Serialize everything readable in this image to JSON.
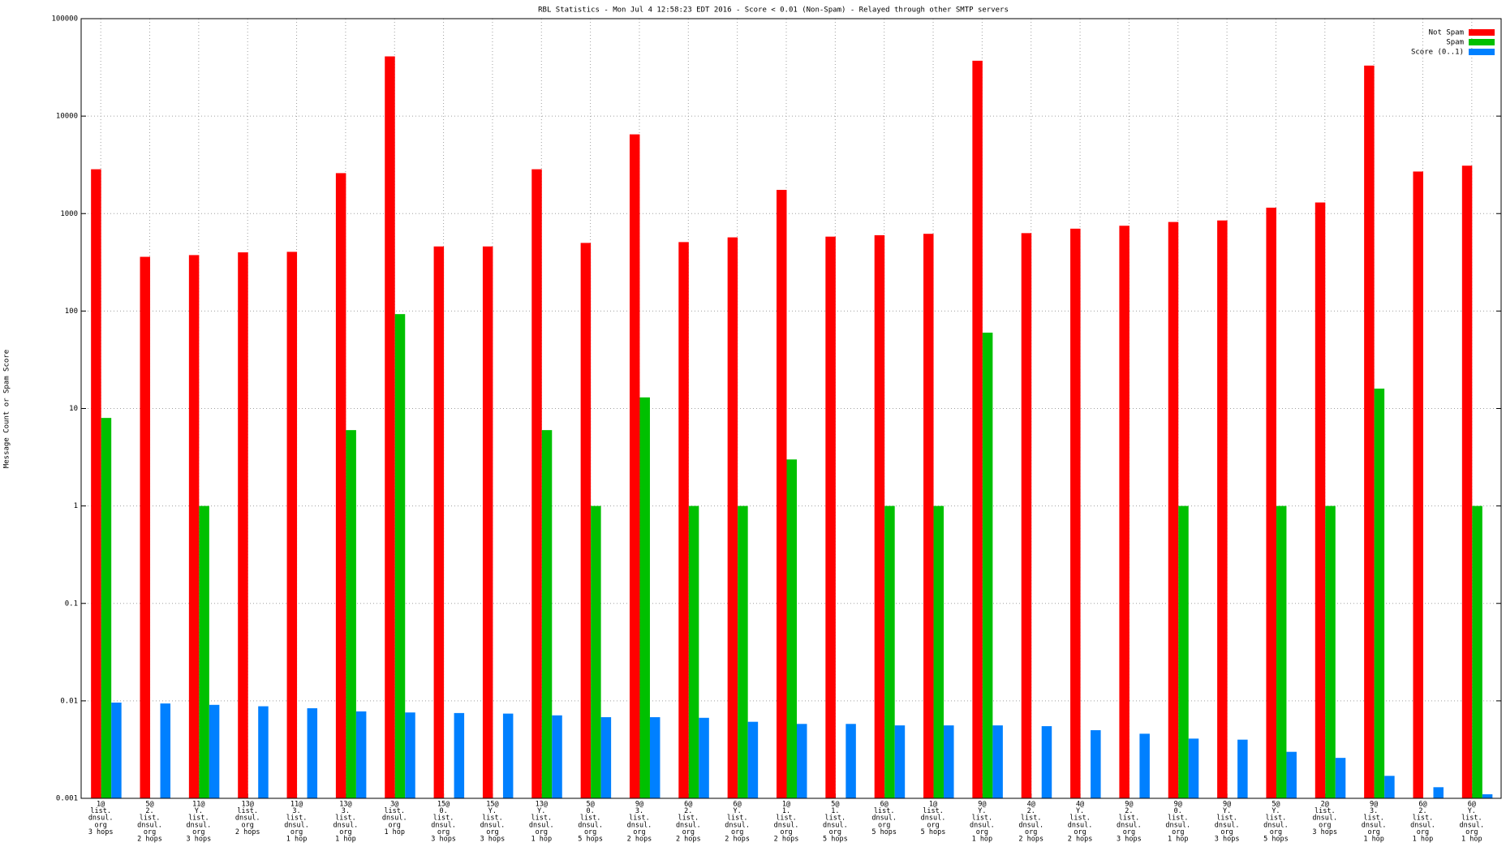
{
  "chart_data": {
    "type": "bar",
    "title": "RBL Statistics - Mon Jul  4 12:58:23 EDT 2016 - Score < 0.01 (Non-Spam) - Relayed through other SMTP servers",
    "y_label": "Message Count or Spam Score",
    "log_y": true,
    "grid": true,
    "legend": "top-right",
    "categories": [
      [
        "1@",
        "list.",
        "dnsul.",
        "org",
        "3 hops"
      ],
      [
        "5@",
        "2.",
        "list.",
        "dnsul.",
        "org",
        "2 hops"
      ],
      [
        "11@",
        "Y.",
        "list.",
        "dnsul.",
        "org",
        "3 hops"
      ],
      [
        "13@",
        "list.",
        "dnsul.",
        "org",
        "2 hops"
      ],
      [
        "11@",
        "3.",
        "list.",
        "dnsul.",
        "org",
        "1 hop"
      ],
      [
        "13@",
        "3.",
        "list.",
        "dnsul.",
        "org",
        "1 hop"
      ],
      [
        "3@",
        "list.",
        "dnsul.",
        "org",
        "1 hop"
      ],
      [
        "15@",
        "0.",
        "list.",
        "dnsul.",
        "org",
        "3 hops"
      ],
      [
        "15@",
        "Y.",
        "list.",
        "dnsul.",
        "org",
        "3 hops"
      ],
      [
        "13@",
        "Y.",
        "list.",
        "dnsul.",
        "org",
        "1 hop"
      ],
      [
        "5@",
        "0.",
        "list.",
        "dnsul.",
        "org",
        "5 hops"
      ],
      [
        "9@",
        "3.",
        "list.",
        "dnsul.",
        "org",
        "2 hops"
      ],
      [
        "6@",
        "2.",
        "list.",
        "dnsul.",
        "org",
        "2 hops"
      ],
      [
        "6@",
        "Y.",
        "list.",
        "dnsul.",
        "org",
        "2 hops"
      ],
      [
        "1@",
        "1.",
        "list.",
        "dnsul.",
        "org",
        "2 hops"
      ],
      [
        "5@",
        "1.",
        "list.",
        "dnsul.",
        "org",
        "5 hops"
      ],
      [
        "6@",
        "list.",
        "dnsul.",
        "org",
        "5 hops"
      ],
      [
        "1@",
        "list.",
        "dnsul.",
        "org",
        "5 hops"
      ],
      [
        "9@",
        "Y.",
        "list.",
        "dnsul.",
        "org",
        "1 hop"
      ],
      [
        "4@",
        "2.",
        "list.",
        "dnsul.",
        "org",
        "2 hops"
      ],
      [
        "4@",
        "Y.",
        "list.",
        "dnsul.",
        "org",
        "2 hops"
      ],
      [
        "9@",
        "2.",
        "list.",
        "dnsul.",
        "org",
        "3 hops"
      ],
      [
        "9@",
        "0.",
        "list.",
        "dnsul.",
        "org",
        "1 hop"
      ],
      [
        "9@",
        "Y.",
        "list.",
        "dnsul.",
        "org",
        "3 hops"
      ],
      [
        "5@",
        "Y.",
        "list.",
        "dnsul.",
        "org",
        "5 hops"
      ],
      [
        "2@",
        "list.",
        "dnsul.",
        "org",
        "3 hops"
      ],
      [
        "9@",
        "3.",
        "list.",
        "dnsul.",
        "org",
        "1 hop"
      ],
      [
        "6@",
        "2.",
        "list.",
        "dnsul.",
        "org",
        "1 hop"
      ],
      [
        "6@",
        "Y.",
        "list.",
        "dnsul.",
        "org",
        "1 hop"
      ]
    ],
    "series": [
      {
        "name": "Not Spam",
        "color": "#ff0000",
        "values": [
          2850,
          360,
          375,
          400,
          405,
          2600,
          41000,
          460,
          460,
          2850,
          500,
          6500,
          510,
          570,
          1750,
          580,
          600,
          620,
          37000,
          630,
          700,
          750,
          820,
          850,
          1150,
          1300,
          33000,
          2700,
          3100
        ]
      },
      {
        "name": "Spam",
        "color": "#00c000",
        "values": [
          8,
          null,
          1,
          null,
          null,
          6,
          93,
          null,
          null,
          6,
          1,
          13,
          1,
          1,
          3,
          null,
          1,
          1,
          60,
          null,
          null,
          null,
          1,
          null,
          1,
          1,
          16,
          null,
          1
        ]
      },
      {
        "name": "Score (0..1)",
        "color": "#0080ff",
        "values": [
          0.0096,
          0.0094,
          0.0091,
          0.0088,
          0.0084,
          0.0078,
          0.0076,
          0.0075,
          0.0074,
          0.0071,
          0.0068,
          0.0068,
          0.0067,
          0.0061,
          0.0058,
          0.0058,
          0.0056,
          0.0056,
          0.0056,
          0.0055,
          0.005,
          0.0046,
          0.0041,
          0.004,
          0.003,
          0.0026,
          0.0017,
          0.0013,
          0.0011
        ]
      }
    ],
    "ylim": [
      0.001,
      100000
    ],
    "yticks": [
      0.001,
      0.01,
      0.1,
      1,
      10,
      100,
      1000,
      10000,
      100000
    ]
  }
}
